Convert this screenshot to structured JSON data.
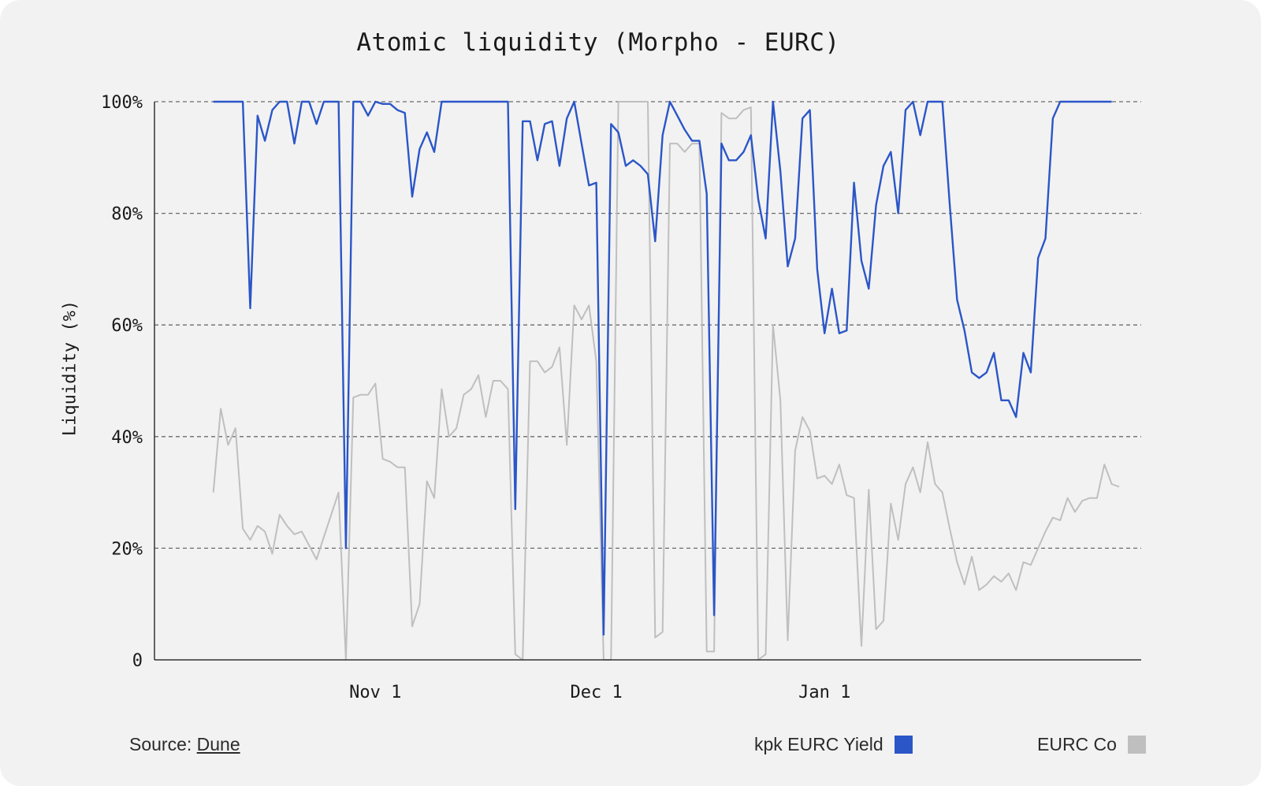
{
  "source": {
    "label": "Source:",
    "link": "Dune"
  },
  "chart_data": {
    "type": "line",
    "title": "Atomic liquidity (Morpho - EURC)",
    "ylabel": "Liquidity (%)",
    "xlabel": "",
    "ylim": [
      0,
      100
    ],
    "yticks": [
      {
        "value": 0,
        "label": "0"
      },
      {
        "value": 20,
        "label": "20%"
      },
      {
        "value": 40,
        "label": "40%"
      },
      {
        "value": 60,
        "label": "60%"
      },
      {
        "value": 80,
        "label": "80%"
      },
      {
        "value": 100,
        "label": "100%"
      }
    ],
    "xlim": [
      "2024-10-02",
      "2025-02-13"
    ],
    "xticks": [
      {
        "date": "2024-11-01",
        "label": "Nov 1"
      },
      {
        "date": "2024-12-01",
        "label": "Dec 1"
      },
      {
        "date": "2025-01-01",
        "label": "Jan 1"
      }
    ],
    "grid": "horizontal-dashed",
    "legend_position": "bottom-right",
    "series": [
      {
        "name": "kpk EURC Yield",
        "color": "#2b56c8",
        "points": [
          [
            "2024-10-10",
            100
          ],
          [
            "2024-10-14",
            100
          ],
          [
            "2024-10-15",
            63
          ],
          [
            "2024-10-16",
            97.5
          ],
          [
            "2024-10-17",
            93
          ],
          [
            "2024-10-18",
            98.5
          ],
          [
            "2024-10-19",
            100
          ],
          [
            "2024-10-20",
            100
          ],
          [
            "2024-10-21",
            92.5
          ],
          [
            "2024-10-22",
            100
          ],
          [
            "2024-10-23",
            100
          ],
          [
            "2024-10-24",
            96
          ],
          [
            "2024-10-25",
            100
          ],
          [
            "2024-10-27",
            100
          ],
          [
            "2024-10-28",
            20
          ],
          [
            "2024-10-29",
            100
          ],
          [
            "2024-10-30",
            100
          ],
          [
            "2024-10-31",
            97.5
          ],
          [
            "2024-11-01",
            100
          ],
          [
            "2024-11-02",
            99.6
          ],
          [
            "2024-11-03",
            99.6
          ],
          [
            "2024-11-04",
            98.5
          ],
          [
            "2024-11-05",
            98
          ],
          [
            "2024-11-06",
            83
          ],
          [
            "2024-11-07",
            91.5
          ],
          [
            "2024-11-08",
            94.5
          ],
          [
            "2024-11-09",
            91
          ],
          [
            "2024-11-10",
            100
          ],
          [
            "2024-11-19",
            100
          ],
          [
            "2024-11-20",
            27
          ],
          [
            "2024-11-21",
            96.5
          ],
          [
            "2024-11-22",
            96.5
          ],
          [
            "2024-11-23",
            89.5
          ],
          [
            "2024-11-24",
            96
          ],
          [
            "2024-11-25",
            96.5
          ],
          [
            "2024-11-26",
            88.5
          ],
          [
            "2024-11-27",
            97
          ],
          [
            "2024-11-28",
            100
          ],
          [
            "2024-11-29",
            92.5
          ],
          [
            "2024-11-30",
            85
          ],
          [
            "2024-12-01",
            85.5
          ],
          [
            "2024-12-02",
            4.5
          ],
          [
            "2024-12-03",
            96
          ],
          [
            "2024-12-04",
            94.5
          ],
          [
            "2024-12-05",
            88.5
          ],
          [
            "2024-12-06",
            89.5
          ],
          [
            "2024-12-07",
            88.5
          ],
          [
            "2024-12-08",
            87
          ],
          [
            "2024-12-09",
            75
          ],
          [
            "2024-12-10",
            94
          ],
          [
            "2024-12-11",
            100
          ],
          [
            "2024-12-12",
            97.5
          ],
          [
            "2024-12-13",
            95
          ],
          [
            "2024-12-14",
            93
          ],
          [
            "2024-12-15",
            93
          ],
          [
            "2024-12-16",
            83.5
          ],
          [
            "2024-12-17",
            8
          ],
          [
            "2024-12-18",
            92.5
          ],
          [
            "2024-12-19",
            89.5
          ],
          [
            "2024-12-20",
            89.5
          ],
          [
            "2024-12-21",
            91
          ],
          [
            "2024-12-22",
            94
          ],
          [
            "2024-12-23",
            82.5
          ],
          [
            "2024-12-24",
            75.5
          ],
          [
            "2024-12-25",
            100
          ],
          [
            "2024-12-26",
            87.5
          ],
          [
            "2024-12-27",
            70.5
          ],
          [
            "2024-12-28",
            75.5
          ],
          [
            "2024-12-29",
            97
          ],
          [
            "2024-12-30",
            98.5
          ],
          [
            "2024-12-31",
            70
          ],
          [
            "2025-01-01",
            58.5
          ],
          [
            "2025-01-02",
            66.5
          ],
          [
            "2025-01-03",
            58.5
          ],
          [
            "2025-01-04",
            59
          ],
          [
            "2025-01-05",
            85.5
          ],
          [
            "2025-01-06",
            71.5
          ],
          [
            "2025-01-07",
            66.5
          ],
          [
            "2025-01-08",
            81.5
          ],
          [
            "2025-01-09",
            88.5
          ],
          [
            "2025-01-10",
            91
          ],
          [
            "2025-01-11",
            80
          ],
          [
            "2025-01-12",
            98.5
          ],
          [
            "2025-01-13",
            100
          ],
          [
            "2025-01-14",
            94
          ],
          [
            "2025-01-15",
            100
          ],
          [
            "2025-01-16",
            100
          ],
          [
            "2025-01-17",
            100
          ],
          [
            "2025-01-18",
            81.5
          ],
          [
            "2025-01-19",
            64.5
          ],
          [
            "2025-01-20",
            59
          ],
          [
            "2025-01-21",
            51.5
          ],
          [
            "2025-01-22",
            50.5
          ],
          [
            "2025-01-23",
            51.5
          ],
          [
            "2025-01-24",
            55
          ],
          [
            "2025-01-25",
            46.5
          ],
          [
            "2025-01-26",
            46.5
          ],
          [
            "2025-01-27",
            43.5
          ],
          [
            "2025-01-28",
            55
          ],
          [
            "2025-01-29",
            51.5
          ],
          [
            "2025-01-30",
            72
          ],
          [
            "2025-01-31",
            75.5
          ],
          [
            "2025-02-01",
            97
          ],
          [
            "2025-02-02",
            100
          ],
          [
            "2025-02-09",
            100
          ]
        ]
      },
      {
        "name": "EURC Co",
        "color": "#bfbfbf",
        "points": [
          [
            "2024-10-10",
            30
          ],
          [
            "2024-10-11",
            45
          ],
          [
            "2024-10-12",
            38.5
          ],
          [
            "2024-10-13",
            41.5
          ],
          [
            "2024-10-14",
            23.5
          ],
          [
            "2024-10-15",
            21.5
          ],
          [
            "2024-10-16",
            24
          ],
          [
            "2024-10-17",
            23
          ],
          [
            "2024-10-18",
            19
          ],
          [
            "2024-10-19",
            26
          ],
          [
            "2024-10-20",
            24
          ],
          [
            "2024-10-21",
            22.5
          ],
          [
            "2024-10-22",
            23
          ],
          [
            "2024-10-23",
            20.5
          ],
          [
            "2024-10-24",
            18
          ],
          [
            "2024-10-25",
            22
          ],
          [
            "2024-10-26",
            26
          ],
          [
            "2024-10-27",
            30
          ],
          [
            "2024-10-28",
            0
          ],
          [
            "2024-10-29",
            47
          ],
          [
            "2024-10-30",
            47.5
          ],
          [
            "2024-10-31",
            47.5
          ],
          [
            "2024-11-01",
            49.5
          ],
          [
            "2024-11-02",
            36
          ],
          [
            "2024-11-03",
            35.5
          ],
          [
            "2024-11-04",
            34.5
          ],
          [
            "2024-11-05",
            34.5
          ],
          [
            "2024-11-06",
            6
          ],
          [
            "2024-11-07",
            10
          ],
          [
            "2024-11-08",
            32
          ],
          [
            "2024-11-09",
            29
          ],
          [
            "2024-11-10",
            48.5
          ],
          [
            "2024-11-11",
            40
          ],
          [
            "2024-11-12",
            41.5
          ],
          [
            "2024-11-13",
            47.5
          ],
          [
            "2024-11-14",
            48.5
          ],
          [
            "2024-11-15",
            51
          ],
          [
            "2024-11-16",
            43.5
          ],
          [
            "2024-11-17",
            50
          ],
          [
            "2024-11-18",
            50
          ],
          [
            "2024-11-19",
            48.5
          ],
          [
            "2024-11-20",
            1
          ],
          [
            "2024-11-21",
            0
          ],
          [
            "2024-11-22",
            53.5
          ],
          [
            "2024-11-23",
            53.5
          ],
          [
            "2024-11-24",
            51.5
          ],
          [
            "2024-11-25",
            52.5
          ],
          [
            "2024-11-26",
            56
          ],
          [
            "2024-11-27",
            38.5
          ],
          [
            "2024-11-28",
            63.5
          ],
          [
            "2024-11-29",
            61
          ],
          [
            "2024-11-30",
            63.5
          ],
          [
            "2024-12-01",
            53.5
          ],
          [
            "2024-12-02",
            0
          ],
          [
            "2024-12-03",
            0
          ],
          [
            "2024-12-04",
            100
          ],
          [
            "2024-12-08",
            100
          ],
          [
            "2024-12-09",
            4
          ],
          [
            "2024-12-10",
            5
          ],
          [
            "2024-12-11",
            92.5
          ],
          [
            "2024-12-12",
            92.5
          ],
          [
            "2024-12-13",
            91
          ],
          [
            "2024-12-14",
            92.5
          ],
          [
            "2024-12-15",
            92.5
          ],
          [
            "2024-12-16",
            1.5
          ],
          [
            "2024-12-17",
            1.5
          ],
          [
            "2024-12-18",
            98
          ],
          [
            "2024-12-19",
            97
          ],
          [
            "2024-12-20",
            97
          ],
          [
            "2024-12-21",
            98.5
          ],
          [
            "2024-12-22",
            99
          ],
          [
            "2024-12-23",
            0
          ],
          [
            "2024-12-24",
            1
          ],
          [
            "2024-12-25",
            60
          ],
          [
            "2024-12-26",
            46.5
          ],
          [
            "2024-12-27",
            3.5
          ],
          [
            "2024-12-28",
            37.5
          ],
          [
            "2024-12-29",
            43.5
          ],
          [
            "2024-12-30",
            41
          ],
          [
            "2024-12-31",
            32.5
          ],
          [
            "2025-01-01",
            33
          ],
          [
            "2025-01-02",
            31.5
          ],
          [
            "2025-01-03",
            35
          ],
          [
            "2025-01-04",
            29.5
          ],
          [
            "2025-01-05",
            29
          ],
          [
            "2025-01-06",
            2.5
          ],
          [
            "2025-01-07",
            30.5
          ],
          [
            "2025-01-08",
            5.5
          ],
          [
            "2025-01-09",
            7
          ],
          [
            "2025-01-10",
            28
          ],
          [
            "2025-01-11",
            21.5
          ],
          [
            "2025-01-12",
            31.5
          ],
          [
            "2025-01-13",
            34.5
          ],
          [
            "2025-01-14",
            30
          ],
          [
            "2025-01-15",
            39
          ],
          [
            "2025-01-16",
            31.5
          ],
          [
            "2025-01-17",
            30
          ],
          [
            "2025-01-18",
            23.5
          ],
          [
            "2025-01-19",
            17.5
          ],
          [
            "2025-01-20",
            13.5
          ],
          [
            "2025-01-21",
            18.5
          ],
          [
            "2025-01-22",
            12.5
          ],
          [
            "2025-01-23",
            13.5
          ],
          [
            "2025-01-24",
            15
          ],
          [
            "2025-01-25",
            14
          ],
          [
            "2025-01-26",
            15.5
          ],
          [
            "2025-01-27",
            12.5
          ],
          [
            "2025-01-28",
            17.5
          ],
          [
            "2025-01-29",
            17
          ],
          [
            "2025-01-30",
            20
          ],
          [
            "2025-01-31",
            23
          ],
          [
            "2025-02-01",
            25.5
          ],
          [
            "2025-02-02",
            25
          ],
          [
            "2025-02-03",
            29
          ],
          [
            "2025-02-04",
            26.5
          ],
          [
            "2025-02-05",
            28.5
          ],
          [
            "2025-02-06",
            29
          ],
          [
            "2025-02-07",
            29
          ],
          [
            "2025-02-08",
            35
          ],
          [
            "2025-02-09",
            31.5
          ],
          [
            "2025-02-10",
            31
          ]
        ]
      }
    ]
  }
}
